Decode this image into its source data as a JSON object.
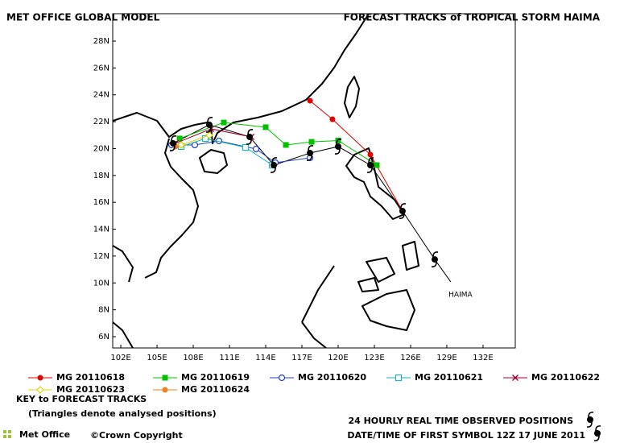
{
  "chart_data": {
    "type": "track-map",
    "title": "MET OFFICE GLOBAL MODEL",
    "subtitle": "FORECAST TRACKS of TROPICAL STORM HAIMA",
    "xlim": [
      101.33,
      134.67
    ],
    "ylim": [
      5.16,
      30.04
    ],
    "xticks": [
      {
        "value": 102,
        "label": "102E"
      },
      {
        "value": 105,
        "label": "105E"
      },
      {
        "value": 108,
        "label": "108E"
      },
      {
        "value": 111,
        "label": "111E"
      },
      {
        "value": 114,
        "label": "114E"
      },
      {
        "value": 117,
        "label": "117E"
      },
      {
        "value": 120,
        "label": "120E"
      },
      {
        "value": 123,
        "label": "123E"
      },
      {
        "value": 126,
        "label": "126E"
      },
      {
        "value": 129,
        "label": "129E"
      },
      {
        "value": 132,
        "label": "132E"
      }
    ],
    "yticks": [
      {
        "value": 6,
        "label": "6N"
      },
      {
        "value": 8,
        "label": "8N"
      },
      {
        "value": 10,
        "label": "10N"
      },
      {
        "value": 12,
        "label": "12N"
      },
      {
        "value": 14,
        "label": "14N"
      },
      {
        "value": 16,
        "label": "16N"
      },
      {
        "value": 18,
        "label": "18N"
      },
      {
        "value": 20,
        "label": "20N"
      },
      {
        "value": 22,
        "label": "22N"
      },
      {
        "value": 24,
        "label": "24N"
      },
      {
        "value": 26,
        "label": "26N"
      },
      {
        "value": 28,
        "label": "28N"
      }
    ],
    "observed": {
      "name": "HAIMA",
      "color": "#000000",
      "x": [
        129.33,
        128.0,
        125.33,
        122.67,
        120.0,
        117.67,
        114.67,
        112.67,
        109.33,
        106.33
      ],
      "y": [
        10.07,
        11.75,
        15.35,
        18.77,
        20.15,
        19.67,
        18.77,
        20.87,
        21.77,
        20.39
      ]
    },
    "series": [
      {
        "name": "MG 20110618",
        "color": "#e00000",
        "marker": "filled-circle",
        "x": [
          117.67,
          119.53,
          122.67,
          125.33
        ],
        "y": [
          23.56,
          22.18,
          19.55,
          15.35
        ]
      },
      {
        "name": "MG 20110619",
        "color": "#00c000",
        "marker": "filled-square",
        "x": [
          106.87,
          110.53,
          114.0,
          115.67,
          117.8,
          120.0,
          123.2
        ],
        "y": [
          20.75,
          21.94,
          21.59,
          20.27,
          20.5,
          20.6,
          18.77
        ]
      },
      {
        "name": "MG 20110620",
        "color": "#2040c0",
        "marker": "open-circle",
        "x": [
          106.2,
          108.13,
          110.13,
          113.2,
          114.8,
          117.67
        ],
        "y": [
          20.27,
          20.27,
          20.57,
          19.97,
          18.95,
          19.31
        ]
      },
      {
        "name": "MG 20110621",
        "color": "#20b0c0",
        "marker": "open-square",
        "x": [
          107.0,
          109.0,
          112.33,
          114.53
        ],
        "y": [
          20.15,
          20.75,
          20.09,
          18.77
        ]
      },
      {
        "name": "MG 20110622",
        "color": "#a00030",
        "marker": "cross",
        "x": [
          106.53,
          109.47,
          112.8
        ],
        "y": [
          20.39,
          21.47,
          20.87
        ]
      },
      {
        "name": "MG 20110623",
        "color": "#e0d000",
        "marker": "open-diamond",
        "x": [
          107.0,
          109.33
        ],
        "y": [
          20.27,
          20.99
        ]
      },
      {
        "name": "MG 20110624",
        "color": "#f08020",
        "marker": "filled-circle",
        "x": [
          106.53
        ],
        "y": [
          20.15
        ]
      }
    ],
    "key_title": "KEY to FORECAST TRACKS",
    "key_note": "(Triangles denote analysed positions)",
    "observed_note": "24 HOURLY REAL TIME OBSERVED POSITIONS",
    "date_note": "DATE/TIME OF FIRST SYMBOL 12Z 17 JUNE 2011",
    "logo": "Met Office",
    "copyright": "©Crown Copyright"
  }
}
